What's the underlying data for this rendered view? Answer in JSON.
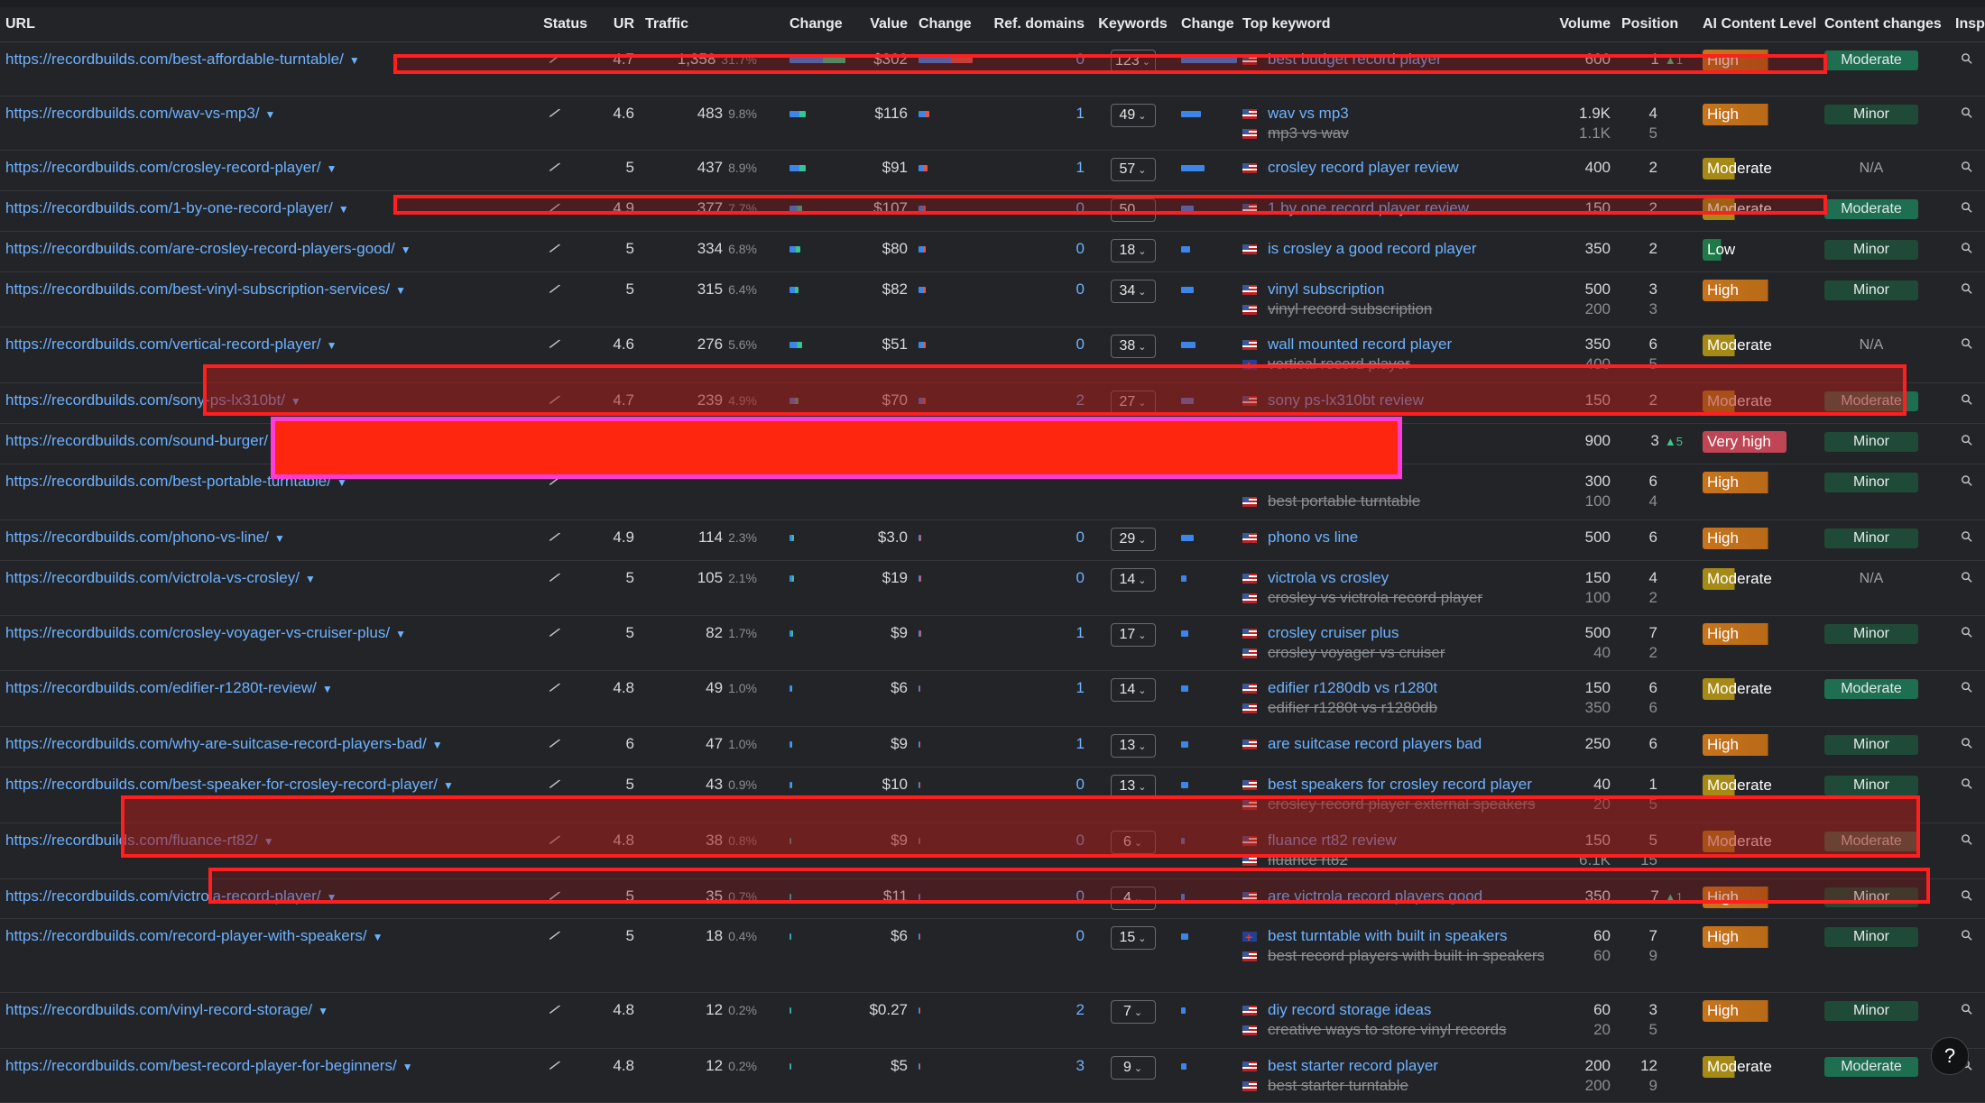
{
  "columns": [
    "URL",
    "Status",
    "UR",
    "Traffic",
    "Change",
    "Value",
    "Change",
    "Ref. domains",
    "Keywords",
    "Change",
    "Top keyword",
    "Volume",
    "Position",
    "AI Content Level",
    "Content changes",
    "Inspect"
  ],
  "rows": [
    {
      "url": "https://recordbuilds.com/best-affordable-turntable/",
      "ur": "4.7",
      "traffic": "1,358",
      "pct": "31.7%",
      "value": "$302",
      "ref": "0",
      "kw": "123",
      "k1": "best budget record player",
      "v1": "600",
      "p1": "1",
      "d1": "▲1",
      "ai": "High",
      "aic": "high",
      "cc": "Moderate",
      "ccc": "moderate",
      "h": 60,
      "bars": [
        62,
        60,
        62
      ]
    },
    {
      "url": "https://recordbuilds.com/wav-vs-mp3/",
      "ur": "4.6",
      "traffic": "483",
      "pct": "9.8%",
      "value": "$116",
      "ref": "1",
      "kw": "49",
      "k1": "wav vs mp3",
      "k2": "mp3 vs wav",
      "v1": "1.9K",
      "v2": "1.1K",
      "p1": "4",
      "p2": "5",
      "ai": "High",
      "aic": "high",
      "cc": "Minor",
      "ccc": "minor",
      "h": 60,
      "bars": [
        18,
        12,
        22
      ]
    },
    {
      "url": "https://recordbuilds.com/crosley-record-player/",
      "ur": "5",
      "traffic": "437",
      "pct": "8.9%",
      "value": "$91",
      "ref": "1",
      "kw": "57",
      "k1": "crosley record player review",
      "v1": "400",
      "p1": "2",
      "ai": "Moderate",
      "aic": "mod",
      "cc": "N/A",
      "ccc": "na",
      "h": 45,
      "bars": [
        18,
        10,
        26
      ]
    },
    {
      "url": "https://recordbuilds.com/1-by-one-record-player/",
      "ur": "4.9",
      "traffic": "377",
      "pct": "7.7%",
      "value": "$107",
      "ref": "0",
      "kw": "50",
      "k1": "1 by one record player review",
      "v1": "150",
      "p1": "2",
      "ai": "Moderate",
      "aic": "mod",
      "cc": "Moderate",
      "ccc": "moderate",
      "h": 45,
      "bars": [
        14,
        8,
        14
      ]
    },
    {
      "url": "https://recordbuilds.com/are-crosley-record-players-good/",
      "ur": "5",
      "traffic": "334",
      "pct": "6.8%",
      "value": "$80",
      "ref": "0",
      "kw": "18",
      "k1": "is crosley a good record player",
      "v1": "350",
      "p1": "2",
      "ai": "Low",
      "aic": "low",
      "cc": "Minor",
      "ccc": "minor",
      "h": 45,
      "bars": [
        12,
        8,
        10
      ]
    },
    {
      "url": "https://recordbuilds.com/best-vinyl-subscription-services/",
      "ur": "5",
      "traffic": "315",
      "pct": "6.4%",
      "value": "$82",
      "ref": "0",
      "kw": "34",
      "k1": "vinyl subscription",
      "k2": "vinyl record subscription",
      "v1": "500",
      "v2": "200",
      "p1": "3",
      "p2": "3",
      "ai": "High",
      "aic": "high",
      "cc": "Minor",
      "ccc": "minor",
      "h": 61,
      "bars": [
        10,
        8,
        14
      ]
    },
    {
      "url": "https://recordbuilds.com/vertical-record-player/",
      "ur": "4.6",
      "traffic": "276",
      "pct": "5.6%",
      "value": "$51",
      "ref": "0",
      "kw": "38",
      "k1": "wall mounted record player",
      "k2": "vertical record player",
      "v1": "350",
      "v2": "400",
      "p1": "6",
      "p2": "5",
      "ai": "Moderate",
      "aic": "mod",
      "cc": "N/A",
      "ccc": "na",
      "h": 62,
      "bars": [
        14,
        8,
        16
      ],
      "uk2": true
    },
    {
      "url": "https://recordbuilds.com/sony-ps-lx310bt/",
      "ur": "4.7",
      "traffic": "239",
      "pct": "4.9%",
      "value": "$70",
      "ref": "2",
      "kw": "27",
      "k1": "sony ps-lx310bt review",
      "v1": "150",
      "p1": "2",
      "ai": "Moderate",
      "aic": "mod",
      "cc": "Moderate",
      "ccc": "moderate",
      "h": 45,
      "bars": [
        10,
        8,
        14
      ]
    },
    {
      "url": "https://recordbuilds.com/sound-burger/",
      "ur": "",
      "traffic": "",
      "pct": "",
      "value": "",
      "ref": "",
      "kw": "",
      "k1": "",
      "v1": "900",
      "p1": "3",
      "d1": "▲5",
      "ai": "Very high",
      "aic": "vhigh",
      "cc": "Minor",
      "ccc": "minor",
      "h": 45,
      "bars": [
        0,
        0,
        0
      ],
      "nokw": true
    },
    {
      "url": "https://recordbuilds.com/best-portable-turntable/",
      "ur": "",
      "traffic": "",
      "pct": "",
      "value": "",
      "ref": "",
      "kw": "",
      "k1": "",
      "k2": "best portable turntable",
      "v1": "300",
      "v2": "100",
      "p1": "6",
      "p2": "4",
      "ai": "High",
      "aic": "high",
      "cc": "Minor",
      "ccc": "minor",
      "h": 62,
      "bars": [
        0,
        0,
        0
      ],
      "nokw": true
    },
    {
      "url": "https://recordbuilds.com/phono-vs-line/",
      "ur": "4.9",
      "traffic": "114",
      "pct": "2.3%",
      "value": "$3.0",
      "ref": "0",
      "kw": "29",
      "k1": "phono vs line",
      "v1": "500",
      "p1": "6",
      "ai": "High",
      "aic": "high",
      "cc": "Minor",
      "ccc": "minor",
      "h": 45,
      "bars": [
        5,
        3,
        14
      ]
    },
    {
      "url": "https://recordbuilds.com/victrola-vs-crosley/",
      "ur": "5",
      "traffic": "105",
      "pct": "2.1%",
      "value": "$19",
      "ref": "0",
      "kw": "14",
      "k1": "victrola vs crosley",
      "k2": "crosley vs victrola record player",
      "v1": "150",
      "v2": "100",
      "p1": "4",
      "p2": "2",
      "ai": "Moderate",
      "aic": "mod",
      "cc": "N/A",
      "ccc": "na",
      "h": 61,
      "bars": [
        5,
        3,
        6
      ]
    },
    {
      "url": "https://recordbuilds.com/crosley-voyager-vs-cruiser-plus/",
      "ur": "5",
      "traffic": "82",
      "pct": "1.7%",
      "value": "$9",
      "ref": "1",
      "kw": "17",
      "k1": "crosley cruiser plus",
      "k2": "crosley voyager vs cruiser",
      "v1": "500",
      "v2": "40",
      "p1": "7",
      "p2": "2",
      "ai": "High",
      "aic": "high",
      "cc": "Minor",
      "ccc": "minor",
      "h": 61,
      "bars": [
        4,
        3,
        8
      ]
    },
    {
      "url": "https://recordbuilds.com/edifier-r1280t-review/",
      "ur": "4.8",
      "traffic": "49",
      "pct": "1.0%",
      "value": "$6",
      "ref": "1",
      "kw": "14",
      "k1": "edifier r1280db vs r1280t",
      "k2": "edifier r1280t vs r1280db",
      "v1": "150",
      "v2": "350",
      "p1": "6",
      "p2": "6",
      "ai": "Moderate",
      "aic": "mod",
      "cc": "Moderate",
      "ccc": "moderate",
      "h": 62,
      "bars": [
        3,
        2,
        8
      ]
    },
    {
      "url": "https://recordbuilds.com/why-are-suitcase-record-players-bad/",
      "ur": "6",
      "traffic": "47",
      "pct": "1.0%",
      "value": "$9",
      "ref": "1",
      "kw": "13",
      "k1": "are suitcase record players bad",
      "v1": "250",
      "p1": "6",
      "ai": "High",
      "aic": "high",
      "cc": "Minor",
      "ccc": "minor",
      "h": 45,
      "bars": [
        3,
        2,
        8
      ]
    },
    {
      "url": "https://recordbuilds.com/best-speaker-for-crosley-record-player/",
      "ur": "5",
      "traffic": "43",
      "pct": "0.9%",
      "value": "$10",
      "ref": "0",
      "kw": "13",
      "k1": "best speakers for crosley record player",
      "k2": "crosley record player external speakers",
      "v1": "40",
      "v2": "20",
      "p1": "1",
      "p2": "5",
      "ai": "Moderate",
      "aic": "mod",
      "cc": "Minor",
      "ccc": "minor",
      "h": 62,
      "bars": [
        3,
        2,
        8
      ]
    },
    {
      "url": "https://recordbuilds.com/fluance-rt82/",
      "ur": "4.8",
      "traffic": "38",
      "pct": "0.8%",
      "value": "$9",
      "ref": "0",
      "kw": "6",
      "k1": "fluance rt82 review",
      "k2": "fluance rt82",
      "v1": "150",
      "v2": "6.1K",
      "p1": "5",
      "p2": "15",
      "ai": "Moderate",
      "aic": "mod",
      "cc": "Moderate",
      "ccc": "moderate",
      "h": 62,
      "bars": [
        2,
        2,
        4
      ]
    },
    {
      "url": "https://recordbuilds.com/victrola-record-player/",
      "ur": "5",
      "traffic": "35",
      "pct": "0.7%",
      "value": "$11",
      "ref": "0",
      "kw": "4",
      "k1": "are victrola record players good",
      "v1": "350",
      "p1": "7",
      "d1": "▲1",
      "ai": "High",
      "aic": "high",
      "cc": "Minor",
      "ccc": "minor",
      "h": 44,
      "bars": [
        2,
        2,
        4
      ]
    },
    {
      "url": "https://recordbuilds.com/record-player-with-speakers/",
      "ur": "5",
      "traffic": "18",
      "pct": "0.4%",
      "value": "$6",
      "ref": "0",
      "kw": "15",
      "k1": "best turntable with built in speakers",
      "k2": "best record players with built in speakers",
      "v1": "60",
      "v2": "60",
      "p1": "7",
      "p2": "9",
      "ai": "High",
      "aic": "high",
      "cc": "Minor",
      "ccc": "minor",
      "h": 82,
      "bars": [
        2,
        2,
        8
      ],
      "uk1": true
    },
    {
      "url": "https://recordbuilds.com/vinyl-record-storage/",
      "ur": "4.8",
      "traffic": "12",
      "pct": "0.2%",
      "value": "$0.27",
      "ref": "2",
      "kw": "7",
      "k1": "diy record storage ideas",
      "k2": "creative ways to store vinyl records",
      "v1": "60",
      "v2": "20",
      "p1": "3",
      "p2": "5",
      "ai": "High",
      "aic": "high",
      "cc": "Minor",
      "ccc": "minor",
      "h": 62,
      "bars": [
        2,
        2,
        5
      ]
    },
    {
      "url": "https://recordbuilds.com/best-record-player-for-beginners/",
      "ur": "4.8",
      "traffic": "12",
      "pct": "0.2%",
      "value": "$5",
      "ref": "3",
      "kw": "9",
      "k1": "best starter record player",
      "k2": "best starter turntable",
      "v1": "200",
      "v2": "200",
      "p1": "12",
      "p2": "9",
      "ai": "Moderate",
      "aic": "mod",
      "cc": "Moderate",
      "ccc": "moderate",
      "h": 60,
      "bars": [
        2,
        2,
        6
      ]
    }
  ],
  "help_label": "?"
}
